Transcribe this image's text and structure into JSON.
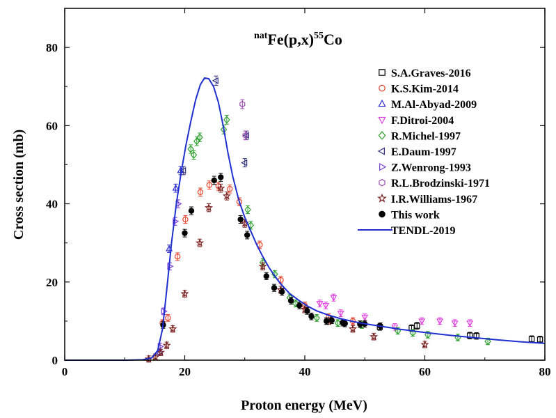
{
  "chart_data": {
    "type": "scatter",
    "title": {
      "prefix_sup": "nat",
      "main": "Fe(p,x)",
      "mid_sup": "55",
      "suffix": "Co"
    },
    "xlabel": "Proton energy (MeV)",
    "ylabel": "Cross section (mb)",
    "xlim": [
      0,
      80
    ],
    "ylim": [
      0,
      90
    ],
    "xticks": [
      0,
      20,
      40,
      60,
      80
    ],
    "yticks": [
      0,
      20,
      40,
      60,
      80
    ],
    "legend_position": "top-right",
    "grid": false,
    "series": [
      {
        "name": "S.A.Graves-2016",
        "marker": "square",
        "filled": false,
        "color": "#000000",
        "points": [
          [
            52.5,
            8.5
          ],
          [
            57.8,
            8.2
          ],
          [
            58.7,
            8.8
          ],
          [
            67.5,
            6.3
          ],
          [
            68.6,
            6.2
          ],
          [
            77.8,
            5.4
          ],
          [
            79.2,
            5.3
          ]
        ]
      },
      {
        "name": "K.S.Kim-2014",
        "marker": "circle",
        "filled": false,
        "color": "#e8412c",
        "points": [
          [
            16.3,
            9.5
          ],
          [
            17.2,
            10.8
          ],
          [
            18.8,
            26.5
          ],
          [
            20.1,
            36.0
          ],
          [
            22.6,
            43.0
          ],
          [
            24.1,
            44.8
          ],
          [
            25.6,
            44.5
          ],
          [
            27.5,
            43.8
          ],
          [
            29.1,
            40.5
          ],
          [
            32.5,
            29.5
          ],
          [
            36.0,
            20.5
          ],
          [
            40.0,
            14.0
          ],
          [
            44.0,
            11.0
          ],
          [
            48.0,
            10.0
          ]
        ]
      },
      {
        "name": "M.Al-Abyad-2009",
        "marker": "triangle-up",
        "filled": false,
        "color": "#2f2fd0",
        "points": [
          [
            15.8,
            2.0
          ],
          [
            17.4,
            28.5
          ],
          [
            18.5,
            44.0
          ],
          [
            19.3,
            48.5
          ]
        ]
      },
      {
        "name": "F.Ditroi-2004",
        "marker": "triangle-down",
        "filled": false,
        "color": "#e040e0",
        "points": [
          [
            42.5,
            14.5
          ],
          [
            43.5,
            14.0
          ],
          [
            44.8,
            16.0
          ],
          [
            46.0,
            12.0
          ],
          [
            50.0,
            11.0
          ],
          [
            55.0,
            8.5
          ],
          [
            59.5,
            10.0
          ],
          [
            62.5,
            10.0
          ],
          [
            65.0,
            9.5
          ],
          [
            67.5,
            9.5
          ]
        ]
      },
      {
        "name": "R.Michel-1997",
        "marker": "diamond",
        "filled": false,
        "color": "#2ea02e",
        "points": [
          [
            21.0,
            54.0
          ],
          [
            21.5,
            52.5
          ],
          [
            22.0,
            56.0
          ],
          [
            22.5,
            57.0
          ],
          [
            26.5,
            59.0
          ],
          [
            27.0,
            61.5
          ],
          [
            30.5,
            38.5
          ],
          [
            31.0,
            34.5
          ],
          [
            33.0,
            25.0
          ],
          [
            35.0,
            22.0
          ],
          [
            37.5,
            16.0
          ],
          [
            38.5,
            14.5
          ],
          [
            42.0,
            10.8
          ],
          [
            45.5,
            9.5
          ],
          [
            49.5,
            9.0
          ],
          [
            55.5,
            7.5
          ],
          [
            58.0,
            7.0
          ],
          [
            60.5,
            6.5
          ],
          [
            65.5,
            5.8
          ],
          [
            70.5,
            4.8
          ]
        ]
      },
      {
        "name": "E.Daum-1997",
        "marker": "triangle-left",
        "filled": false,
        "color": "#303080",
        "points": [
          [
            19.8,
            48.5
          ],
          [
            25.2,
            71.5
          ],
          [
            30.0,
            50.5
          ],
          [
            30.3,
            57.5
          ]
        ]
      },
      {
        "name": "Z.Wenrong-1993",
        "marker": "triangle-right",
        "filled": false,
        "color": "#7a3fd8",
        "points": [
          [
            15.9,
            3.5
          ],
          [
            16.5,
            12.5
          ],
          [
            17.5,
            24.0
          ],
          [
            18.4,
            35.5
          ],
          [
            18.9,
            40.0
          ]
        ]
      },
      {
        "name": "R.L.Brodzinski-1971",
        "marker": "hexagon",
        "filled": false,
        "color": "#9a4bb0",
        "points": [
          [
            29.6,
            65.5
          ],
          [
            30.1,
            57.5
          ]
        ]
      },
      {
        "name": "I.R.Williams-1967",
        "marker": "star",
        "filled": false,
        "color": "#7a1f1f",
        "points": [
          [
            14.0,
            0.3
          ],
          [
            15.1,
            0.8
          ],
          [
            16.0,
            2.0
          ],
          [
            17.0,
            3.8
          ],
          [
            18.0,
            8.0
          ],
          [
            20.0,
            17.0
          ],
          [
            22.5,
            30.0
          ],
          [
            24.0,
            39.0
          ],
          [
            26.0,
            44.0
          ],
          [
            27.0,
            42.0
          ],
          [
            30.0,
            35.0
          ],
          [
            33.0,
            24.0
          ],
          [
            36.0,
            18.0
          ],
          [
            40.0,
            13.0
          ],
          [
            44.0,
            10.0
          ],
          [
            48.0,
            8.0
          ],
          [
            51.5,
            6.0
          ],
          [
            60.0,
            4.0
          ]
        ]
      },
      {
        "name": "This work",
        "marker": "circle",
        "filled": true,
        "color": "#000000",
        "points": [
          [
            16.4,
            9.0
          ],
          [
            20.0,
            32.5
          ],
          [
            21.1,
            38.2
          ],
          [
            24.9,
            46.0
          ],
          [
            26.0,
            46.8
          ],
          [
            29.3,
            36.0
          ],
          [
            30.4,
            32.0
          ],
          [
            33.6,
            21.5
          ],
          [
            34.9,
            18.5
          ],
          [
            36.2,
            17.5
          ],
          [
            37.7,
            15.2
          ],
          [
            39.1,
            14.0
          ],
          [
            40.4,
            12.6
          ],
          [
            41.1,
            11.2
          ],
          [
            43.6,
            10.0
          ],
          [
            44.5,
            10.2
          ],
          [
            46.3,
            9.6
          ],
          [
            46.7,
            9.4
          ],
          [
            49.2,
            9.2
          ],
          [
            50.0,
            9.3
          ],
          [
            52.6,
            8.7
          ]
        ]
      },
      {
        "name": "TENDL-2019",
        "marker": "line",
        "filled": false,
        "color": "#1f2fd0",
        "points": [
          [
            0,
            0
          ],
          [
            10,
            0
          ],
          [
            13,
            0.1
          ],
          [
            14.5,
            0.6
          ],
          [
            15.5,
            2.5
          ],
          [
            16.3,
            8
          ],
          [
            17.0,
            18
          ],
          [
            17.8,
            30
          ],
          [
            18.6,
            40
          ],
          [
            19.4,
            48
          ],
          [
            20.2,
            55
          ],
          [
            21.0,
            61
          ],
          [
            21.8,
            66.5
          ],
          [
            22.6,
            70.5
          ],
          [
            23.3,
            72.2
          ],
          [
            24.0,
            72.0
          ],
          [
            24.8,
            70.0
          ],
          [
            25.6,
            66.0
          ],
          [
            26.4,
            60.0
          ],
          [
            27.2,
            53.0
          ],
          [
            28.0,
            47.0
          ],
          [
            29.0,
            41.0
          ],
          [
            30.0,
            36.5
          ],
          [
            31.0,
            33.0
          ],
          [
            32.0,
            29.5
          ],
          [
            33.0,
            26.5
          ],
          [
            34.0,
            23.8
          ],
          [
            35.0,
            21.5
          ],
          [
            36.0,
            19.5
          ],
          [
            37.5,
            17.0
          ],
          [
            39.0,
            15.3
          ],
          [
            40.5,
            13.8
          ],
          [
            42.0,
            12.6
          ],
          [
            44.0,
            11.5
          ],
          [
            46.0,
            10.6
          ],
          [
            48.0,
            9.9
          ],
          [
            50.0,
            9.3
          ],
          [
            53.0,
            8.6
          ],
          [
            56.0,
            7.9
          ],
          [
            60.0,
            7.1
          ],
          [
            64.0,
            6.4
          ],
          [
            68.0,
            5.8
          ],
          [
            72.0,
            5.2
          ],
          [
            76.0,
            4.7
          ],
          [
            80.0,
            4.3
          ]
        ]
      }
    ]
  }
}
